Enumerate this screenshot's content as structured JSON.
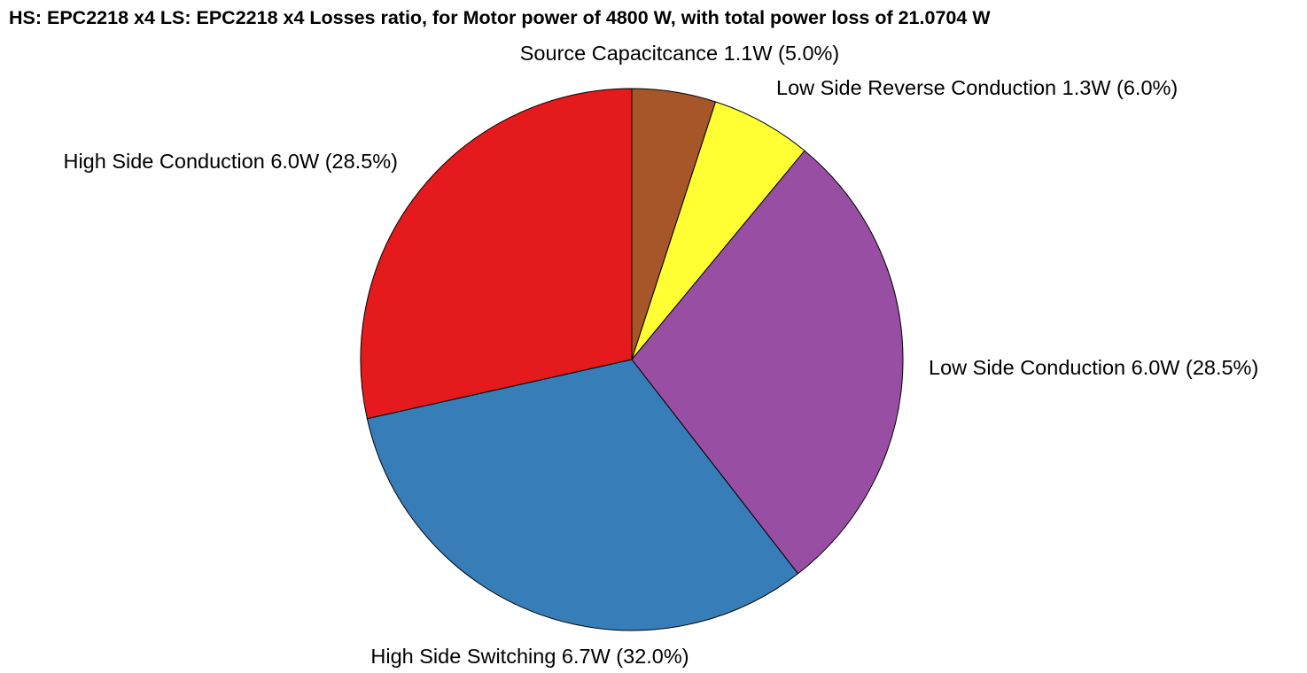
{
  "chart_data": {
    "type": "pie",
    "title": "HS: EPC2218 x4  LS: EPC2218 x4 Losses ratio, for Motor power of 4800 W, with total power loss of 21.0704 W",
    "start_angle": "12 o'clock",
    "direction": "clockwise",
    "slices": [
      {
        "label": "Source Capacitcance",
        "value": 1.1,
        "percent": 5.0,
        "display_label": "Source Capacitcance 1.1W (5.0%)",
        "color": "#A65628"
      },
      {
        "label": "Low Side Reverse Conduction",
        "value": 1.3,
        "percent": 6.0,
        "display_label": "Low Side Reverse Conduction 1.3W (6.0%)",
        "color": "#FFFF33"
      },
      {
        "label": "Low Side Conduction",
        "value": 6.0,
        "percent": 28.5,
        "display_label": "Low Side Conduction 6.0W (28.5%)",
        "color": "#984EA3"
      },
      {
        "label": "High Side Switching",
        "value": 6.7,
        "percent": 32.0,
        "display_label": "High Side Switching 6.7W (32.0%)",
        "color": "#377EB8"
      },
      {
        "label": "High Side Conduction",
        "value": 6.0,
        "percent": 28.5,
        "display_label": "High Side Conduction 6.0W (28.5%)",
        "color": "#E41A1C"
      }
    ]
  }
}
